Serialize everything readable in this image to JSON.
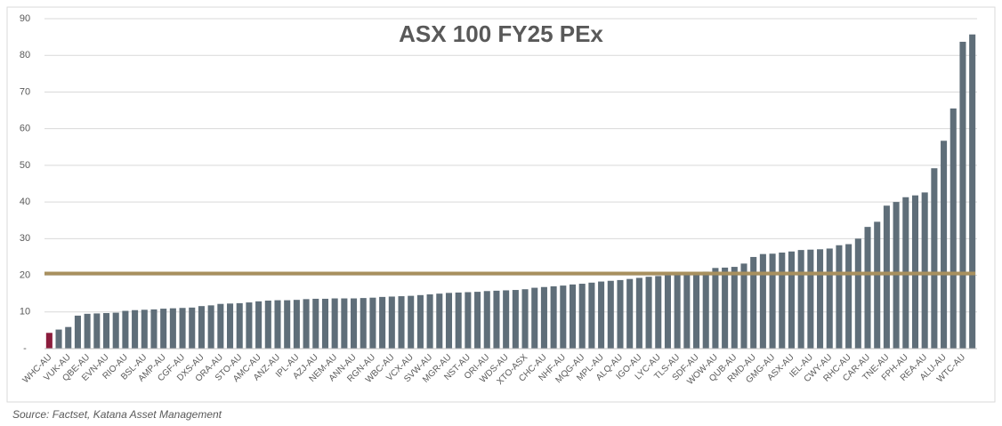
{
  "chart_data": {
    "type": "bar",
    "title": "ASX 100 FY25 PEx",
    "source": "Source: Factset, Katana Asset Management",
    "categories": [
      "WHC-AU",
      null,
      "VUK-AU",
      null,
      "QBE-AU",
      null,
      "EVN-AU",
      null,
      "RIO-AU",
      null,
      "BSL-AU",
      null,
      "AMP-AU",
      null,
      "CGF-AU",
      null,
      "DXS-AU",
      null,
      "ORA-AU",
      null,
      "STO-AU",
      null,
      "AMC-AU",
      null,
      "ANZ-AU",
      null,
      "IPL-AU",
      null,
      "AZJ-AU",
      null,
      "NEM-AU",
      null,
      "ANN-AU",
      null,
      "RGN-AU",
      null,
      "WBC-AU",
      null,
      "VCX-AU",
      null,
      "SVW-AU",
      null,
      "MGR-AU",
      null,
      "NST-AU",
      null,
      "ORI-AU",
      null,
      "WDS-AU",
      null,
      "XTO-ASX",
      null,
      "CHC-AU",
      null,
      "NHF-AU",
      null,
      "MQG-AU",
      null,
      "MPL-AU",
      null,
      "ALQ-AU",
      null,
      "IGO-AU",
      null,
      "LYC-AU",
      null,
      "TLS-AU",
      null,
      "SDF-AU",
      null,
      "WOW-AU",
      null,
      "QUB-AU",
      null,
      "RMD-AU",
      null,
      "GMG-AU",
      null,
      "ASX-AU",
      null,
      "IEL-AU",
      null,
      "CWY-AU",
      null,
      "RHC-AU",
      null,
      "CAR-AU",
      null,
      "TNE-AU",
      null,
      "FPH-AU",
      null,
      "REA-AU",
      null,
      "ALU-AU",
      null,
      "WTC-AU",
      null
    ],
    "values": [
      4.3,
      5.2,
      5.9,
      9.0,
      9.5,
      9.6,
      9.7,
      9.8,
      10.3,
      10.5,
      10.6,
      10.7,
      10.9,
      11.0,
      11.1,
      11.2,
      11.6,
      11.8,
      12.2,
      12.3,
      12.4,
      12.6,
      12.9,
      13.1,
      13.2,
      13.2,
      13.3,
      13.5,
      13.6,
      13.6,
      13.7,
      13.7,
      13.7,
      13.8,
      13.9,
      14.1,
      14.2,
      14.3,
      14.4,
      14.6,
      14.8,
      15.0,
      15.2,
      15.3,
      15.4,
      15.5,
      15.7,
      15.8,
      15.9,
      16.0,
      16.2,
      16.6,
      16.8,
      17.0,
      17.2,
      17.5,
      17.7,
      18.0,
      18.3,
      18.5,
      18.7,
      19.0,
      19.3,
      19.6,
      19.8,
      20.0,
      20.2,
      20.5,
      20.8,
      21.0,
      22.0,
      22.1,
      22.3,
      23.2,
      25.0,
      25.8,
      25.9,
      26.2,
      26.5,
      26.9,
      27.0,
      27.1,
      27.3,
      28.2,
      28.5,
      30.0,
      33.2,
      34.6,
      39.0,
      40.0,
      41.3,
      41.8,
      42.6,
      49.2,
      56.7,
      65.5,
      83.7,
      85.7
    ],
    "color": "#5f6e79",
    "highlight": {
      "category": "WHC-AU",
      "color": "#8b1c3c"
    },
    "reference_line": {
      "value": 20.5,
      "color": "#a8905e"
    },
    "ylim": [
      0,
      90
    ],
    "yticks": [
      {
        "value": 0,
        "label": "-"
      },
      10,
      20,
      30,
      40,
      50,
      60,
      70,
      80,
      90
    ],
    "grid": true
  }
}
